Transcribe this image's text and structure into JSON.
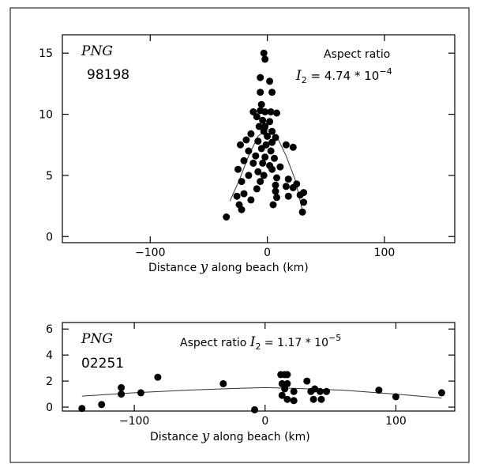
{
  "chart_data": [
    {
      "type": "scatter",
      "label_italic": "PNG",
      "code": "98198",
      "annotation": {
        "title": "Aspect ratio",
        "var": "I",
        "sub": "2",
        "eq": " = 4.74 * 10",
        "exp": "−4"
      },
      "xlabel_pre": "Distance ",
      "xlabel_var": "y",
      "xlabel_post": " along beach  (km)",
      "xlim": [
        -175,
        160
      ],
      "ylim": [
        -0.5,
        16.5
      ],
      "xticks": [
        -100,
        0,
        100
      ],
      "yticks": [
        0,
        5,
        10,
        15
      ],
      "grid": false,
      "series": [
        {
          "points": [
            [
              -3,
              15
            ],
            [
              -2,
              14.5
            ],
            [
              -6,
              13
            ],
            [
              2,
              12.7
            ],
            [
              -6,
              11.8
            ],
            [
              4,
              11.8
            ],
            [
              -5,
              10.8
            ],
            [
              -12,
              10.2
            ],
            [
              -6,
              10.3
            ],
            [
              -2,
              10.2
            ],
            [
              3,
              10.2
            ],
            [
              8,
              10.1
            ],
            [
              -9,
              9.8
            ],
            [
              -4,
              9.5
            ],
            [
              2,
              9.4
            ],
            [
              -7,
              9.0
            ],
            [
              -2,
              9.0
            ],
            [
              4,
              8.6
            ],
            [
              -14,
              8.4
            ],
            [
              -3,
              8.6
            ],
            [
              0,
              8.2
            ],
            [
              7,
              8.1
            ],
            [
              -23,
              7.5
            ],
            [
              -18,
              7.9
            ],
            [
              -8,
              7.8
            ],
            [
              -1,
              7.5
            ],
            [
              4,
              7.7
            ],
            [
              16,
              7.5
            ],
            [
              -16,
              7.0
            ],
            [
              -5,
              7.2
            ],
            [
              3,
              7.0
            ],
            [
              22,
              7.3
            ],
            [
              -10,
              6.6
            ],
            [
              -2,
              6.5
            ],
            [
              6,
              6.4
            ],
            [
              -20,
              6.2
            ],
            [
              -12,
              6.0
            ],
            [
              -4,
              6.0
            ],
            [
              2,
              5.8
            ],
            [
              11,
              5.7
            ],
            [
              -25,
              5.5
            ],
            [
              -8,
              5.3
            ],
            [
              4,
              5.5
            ],
            [
              -16,
              5.0
            ],
            [
              -3,
              5.0
            ],
            [
              8,
              4.8
            ],
            [
              18,
              4.7
            ],
            [
              -22,
              4.5
            ],
            [
              -6,
              4.5
            ],
            [
              7,
              4.2
            ],
            [
              25,
              4.3
            ],
            [
              -9,
              3.9
            ],
            [
              16,
              4.1
            ],
            [
              22,
              4.0
            ],
            [
              -20,
              3.5
            ],
            [
              7,
              3.7
            ],
            [
              28,
              3.4
            ],
            [
              -26,
              3.3
            ],
            [
              -14,
              3.0
            ],
            [
              8,
              3.2
            ],
            [
              18,
              3.3
            ],
            [
              31,
              3.6
            ],
            [
              31,
              2.8
            ],
            [
              -24,
              2.6
            ],
            [
              5,
              2.6
            ],
            [
              -22,
              2.2
            ],
            [
              -35,
              1.6
            ],
            [
              30,
              2.0
            ]
          ]
        },
        {
          "curve": [
            [
              -32,
              2.9
            ],
            [
              -24,
              4.6
            ],
            [
              -16,
              6.6
            ],
            [
              -8,
              8.2
            ],
            [
              0,
              8.8
            ],
            [
              8,
              8.2
            ],
            [
              16,
              6.6
            ],
            [
              24,
              4.6
            ],
            [
              30,
              2.1
            ]
          ]
        }
      ]
    },
    {
      "type": "scatter",
      "label_italic": "PNG",
      "code": "02251",
      "annotation": {
        "title": "Aspect ratio ",
        "var": "I",
        "sub": "2",
        "eq": " = 1.17 * 10",
        "exp": "−5"
      },
      "xlabel_pre": "Distance ",
      "xlabel_var": "y",
      "xlabel_post": " along beach  (km)",
      "xlim": [
        -155,
        145
      ],
      "ylim": [
        -0.3,
        6.5
      ],
      "xticks": [
        -100,
        0,
        100
      ],
      "yticks": [
        0,
        2,
        4,
        6
      ],
      "grid": false,
      "series": [
        {
          "points": [
            [
              -140,
              -0.1
            ],
            [
              -125,
              0.2
            ],
            [
              -110,
              1.5
            ],
            [
              -110,
              1.0
            ],
            [
              -95,
              1.1
            ],
            [
              -82,
              2.3
            ],
            [
              -32,
              1.8
            ],
            [
              -8,
              -0.2
            ],
            [
              12,
              2.5
            ],
            [
              15,
              2.5
            ],
            [
              17,
              2.5
            ],
            [
              13,
              1.8
            ],
            [
              17,
              1.8
            ],
            [
              15,
              1.4
            ],
            [
              22,
              1.2
            ],
            [
              13,
              0.9
            ],
            [
              17,
              0.6
            ],
            [
              22,
              0.5
            ],
            [
              32,
              2.0
            ],
            [
              35,
              1.2
            ],
            [
              38,
              1.4
            ],
            [
              42,
              1.2
            ],
            [
              37,
              0.6
            ],
            [
              43,
              0.6
            ],
            [
              47,
              1.2
            ],
            [
              87,
              1.3
            ],
            [
              100,
              0.8
            ],
            [
              135,
              1.1
            ]
          ]
        },
        {
          "curve": [
            [
              -140,
              0.85
            ],
            [
              -100,
              1.1
            ],
            [
              -60,
              1.3
            ],
            [
              -20,
              1.45
            ],
            [
              0,
              1.5
            ],
            [
              20,
              1.45
            ],
            [
              60,
              1.3
            ],
            [
              100,
              1.0
            ],
            [
              135,
              0.7
            ]
          ]
        }
      ]
    }
  ]
}
